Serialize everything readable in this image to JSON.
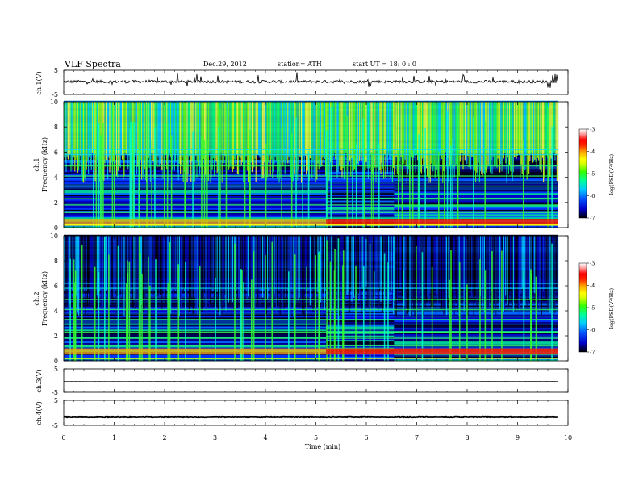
{
  "header": {
    "title": "VLF  Spectra",
    "date": "Dec.29, 2012",
    "station": "station= ATH",
    "start": "start  UT  =    18: 0  : 0"
  },
  "chart_data": {
    "type": "heatmap",
    "x": {
      "label": "Time  (min)",
      "range": [
        0,
        10
      ],
      "ticks": [
        "0",
        "1",
        "2",
        "3",
        "4",
        "5",
        "6",
        "7",
        "8",
        "9",
        "10"
      ]
    },
    "panels": [
      {
        "id": "ch1_waveform",
        "type": "line",
        "ylabel": "ch.1(V)",
        "yticks": [
          "5",
          "-5"
        ],
        "ylim": [
          -5,
          5
        ],
        "baseline": 0.3,
        "data_end_min": 9.8
      },
      {
        "id": "ch1_spectrogram",
        "type": "heatmap",
        "ylabel_channel": "ch.1",
        "ylabel": "Frequency  (kHz)",
        "yticks": [
          "0",
          "2",
          "4",
          "6",
          "8",
          "10"
        ],
        "ylim": [
          0,
          10
        ],
        "data_end_min": 9.8,
        "sferic_band_above_kHz": 6,
        "segments_change_min": [
          5.2,
          6.55
        ],
        "intense_band_kHz": [
          0.2,
          0.7
        ]
      },
      {
        "id": "ch2_spectrogram",
        "type": "heatmap",
        "ylabel_channel": "ch.2",
        "ylabel": "Frequency  (kHz)",
        "yticks": [
          "0",
          "2",
          "4",
          "6",
          "8",
          "10"
        ],
        "ylim": [
          0,
          10
        ],
        "data_end_min": 9.8,
        "sferic_band_above_kHz": 6,
        "segments_change_min": [
          5.2,
          6.55
        ],
        "intense_band_kHz": [
          0.5,
          1.0
        ]
      },
      {
        "id": "ch3_waveform",
        "type": "line",
        "ylabel": "ch.3(V)",
        "yticks": [
          "5",
          "-5"
        ],
        "ylim": [
          -5,
          5
        ],
        "baseline": -0.4,
        "data_end_min": 9.8
      },
      {
        "id": "ch4_waveform",
        "type": "line",
        "ylabel": "ch.4(V)",
        "yticks": [
          "5",
          "-5"
        ],
        "ylim": [
          -5,
          5
        ],
        "baseline": -1.6,
        "data_end_min": 9.8
      }
    ],
    "colorbar": {
      "label": "log(PSD(V²/Hz)",
      "ticks": [
        "-3",
        "-4",
        "-5",
        "-6",
        "-7"
      ],
      "range": [
        -7,
        -3
      ],
      "colors": [
        "#000000",
        "#0000cc",
        "#0055ff",
        "#00ccff",
        "#00ff99",
        "#33ff00",
        "#ccff00",
        "#ffff00",
        "#ffaa00",
        "#ff3300",
        "#ff0000",
        "#ffaaaa",
        "#ffffff"
      ]
    }
  }
}
